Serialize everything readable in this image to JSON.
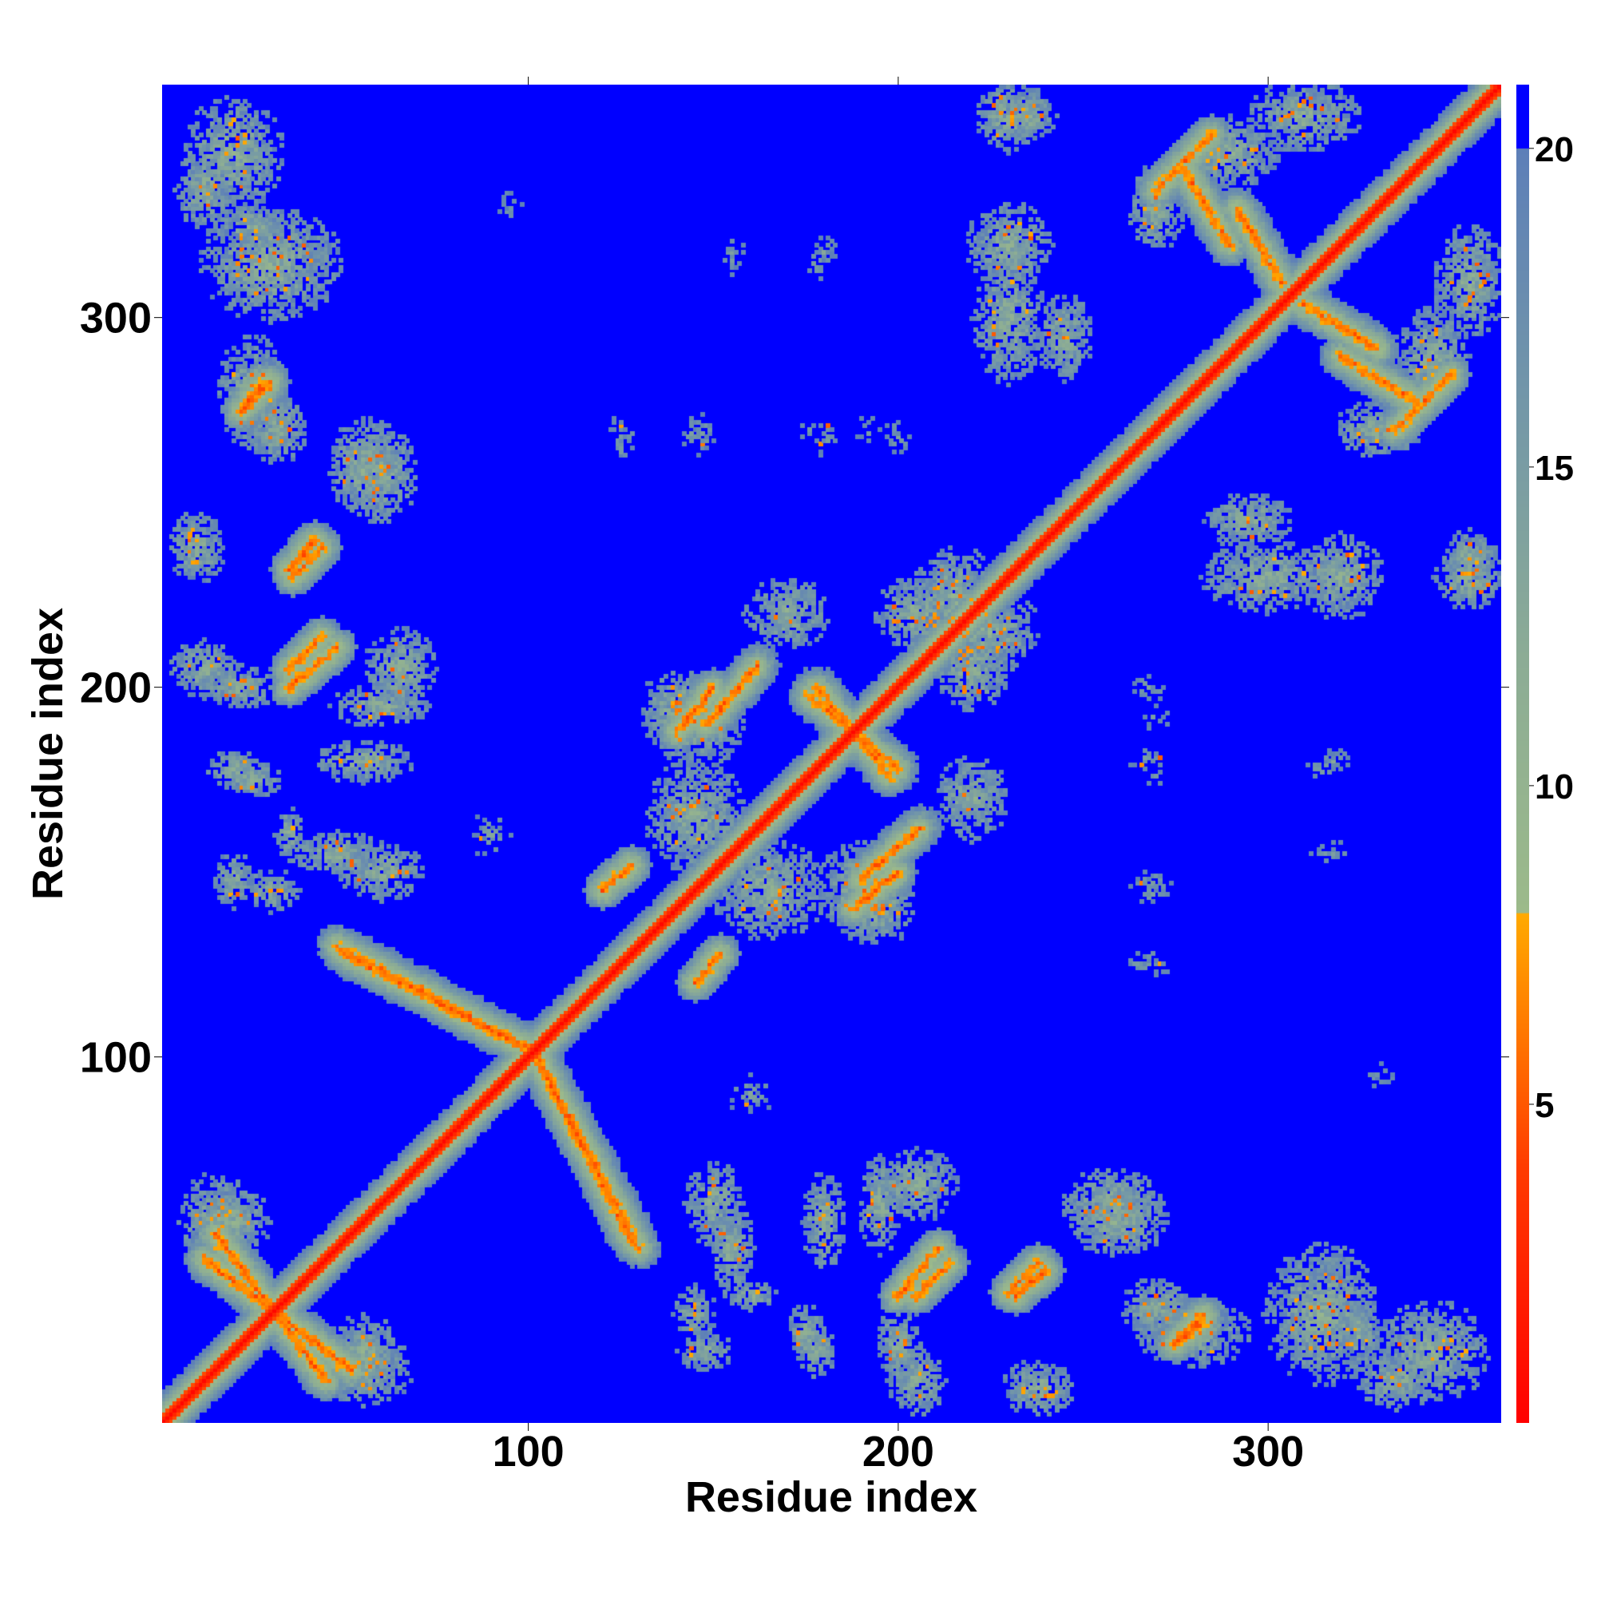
{
  "chart_data": {
    "type": "heatmap",
    "title": "",
    "xlabel": "Residue index",
    "ylabel": "Residue index",
    "xlim": [
      1,
      363
    ],
    "ylim": [
      1,
      363
    ],
    "x_ticks": [
      100,
      200,
      300
    ],
    "y_ticks": [
      100,
      200,
      300
    ],
    "x_tick_labels": [
      "100",
      "200",
      "300"
    ],
    "y_tick_labels": [
      "100",
      "200",
      "300"
    ],
    "colorbar": {
      "ticks": [
        5,
        10,
        15,
        20
      ],
      "tick_labels": [
        "5",
        "10",
        "15",
        "20"
      ],
      "range": [
        0,
        21
      ],
      "stops": [
        {
          "value": 0,
          "color": "#ff0000"
        },
        {
          "value": 4,
          "color": "#ff3b00"
        },
        {
          "value": 6,
          "color": "#ff7400"
        },
        {
          "value": 8,
          "color": "#ffaa00"
        },
        {
          "value": 8.01,
          "color": "#9cba8a"
        },
        {
          "value": 12,
          "color": "#8cac95"
        },
        {
          "value": 16,
          "color": "#7397a8"
        },
        {
          "value": 20,
          "color": "#5d7fb8"
        },
        {
          "value": 20.01,
          "color": "#0000ff"
        },
        {
          "value": 21,
          "color": "#0000ff"
        }
      ]
    },
    "features": {
      "diagonal": {
        "from": 1,
        "to": 363
      },
      "anti_diagonal_strands": [
        {
          "x1": 50,
          "y1": 128,
          "x2": 100,
          "y2": 102
        },
        {
          "x1": 103,
          "y1": 98,
          "x2": 130,
          "y2": 48
        },
        {
          "x1": 15,
          "y1": 52,
          "x2": 45,
          "y2": 12
        },
        {
          "x1": 178,
          "y1": 200,
          "x2": 198,
          "y2": 176
        },
        {
          "x1": 190,
          "y1": 148,
          "x2": 206,
          "y2": 162
        },
        {
          "x1": 320,
          "y1": 290,
          "x2": 340,
          "y2": 278
        },
        {
          "x1": 292,
          "y1": 330,
          "x2": 304,
          "y2": 310
        }
      ],
      "parallel_strands": [
        {
          "x1": 35,
          "y1": 200,
          "x2": 48,
          "y2": 211
        },
        {
          "x1": 35,
          "y1": 232,
          "x2": 42,
          "y2": 240
        },
        {
          "x1": 22,
          "y1": 275,
          "x2": 28,
          "y2": 283
        },
        {
          "x1": 205,
          "y1": 35,
          "x2": 214,
          "y2": 44
        },
        {
          "x1": 230,
          "y1": 36,
          "x2": 238,
          "y2": 44
        },
        {
          "x1": 140,
          "y1": 188,
          "x2": 150,
          "y2": 200
        },
        {
          "x1": 270,
          "y1": 335,
          "x2": 285,
          "y2": 350
        },
        {
          "x1": 275,
          "y1": 22,
          "x2": 283,
          "y2": 30
        },
        {
          "x1": 145,
          "y1": 120,
          "x2": 152,
          "y2": 128
        }
      ],
      "contact_patches": [
        {
          "x": 12,
          "y": 335,
          "rx": 8,
          "ry": 12
        },
        {
          "x": 25,
          "y": 325,
          "rx": 10,
          "ry": 6
        },
        {
          "x": 25,
          "y": 280,
          "rx": 10,
          "ry": 16
        },
        {
          "x": 10,
          "y": 238,
          "rx": 8,
          "ry": 10
        },
        {
          "x": 12,
          "y": 205,
          "rx": 10,
          "ry": 8
        },
        {
          "x": 60,
          "y": 258,
          "rx": 10,
          "ry": 14
        },
        {
          "x": 65,
          "y": 205,
          "rx": 10,
          "ry": 12
        },
        {
          "x": 20,
          "y": 178,
          "rx": 8,
          "ry": 5
        },
        {
          "x": 20,
          "y": 148,
          "rx": 6,
          "ry": 8
        },
        {
          "x": 35,
          "y": 160,
          "rx": 4,
          "ry": 8
        },
        {
          "x": 60,
          "y": 150,
          "rx": 12,
          "ry": 8
        },
        {
          "x": 15,
          "y": 55,
          "rx": 10,
          "ry": 14
        },
        {
          "x": 55,
          "y": 20,
          "rx": 10,
          "ry": 10
        },
        {
          "x": 145,
          "y": 30,
          "rx": 6,
          "ry": 8
        },
        {
          "x": 175,
          "y": 25,
          "rx": 5,
          "ry": 8
        },
        {
          "x": 200,
          "y": 22,
          "rx": 6,
          "ry": 10
        },
        {
          "x": 155,
          "y": 48,
          "rx": 6,
          "ry": 14
        },
        {
          "x": 180,
          "y": 55,
          "rx": 6,
          "ry": 14
        },
        {
          "x": 195,
          "y": 60,
          "rx": 6,
          "ry": 14
        },
        {
          "x": 260,
          "y": 55,
          "rx": 14,
          "ry": 10
        },
        {
          "x": 270,
          "y": 32,
          "rx": 10,
          "ry": 8
        },
        {
          "x": 315,
          "y": 30,
          "rx": 16,
          "ry": 20
        },
        {
          "x": 345,
          "y": 20,
          "rx": 16,
          "ry": 14
        },
        {
          "x": 140,
          "y": 195,
          "rx": 10,
          "ry": 10
        },
        {
          "x": 145,
          "y": 165,
          "rx": 14,
          "ry": 16
        },
        {
          "x": 190,
          "y": 145,
          "rx": 12,
          "ry": 14
        },
        {
          "x": 205,
          "y": 220,
          "rx": 12,
          "ry": 10
        },
        {
          "x": 225,
          "y": 215,
          "rx": 14,
          "ry": 12
        },
        {
          "x": 220,
          "y": 170,
          "rx": 10,
          "ry": 12
        },
        {
          "x": 290,
          "y": 345,
          "rx": 14,
          "ry": 10
        },
        {
          "x": 355,
          "y": 310,
          "rx": 10,
          "ry": 16
        },
        {
          "x": 330,
          "y": 270,
          "rx": 12,
          "ry": 8
        },
        {
          "x": 300,
          "y": 230,
          "rx": 18,
          "ry": 10
        },
        {
          "x": 355,
          "y": 230,
          "rx": 10,
          "ry": 10
        },
        {
          "x": 230,
          "y": 320,
          "rx": 12,
          "ry": 12
        },
        {
          "x": 245,
          "y": 295,
          "rx": 8,
          "ry": 12
        },
        {
          "x": 235,
          "y": 355,
          "rx": 8,
          "ry": 8
        }
      ],
      "sparse_specks": [
        {
          "x": 125,
          "y": 268,
          "rx": 5,
          "ry": 7
        },
        {
          "x": 145,
          "y": 268,
          "rx": 5,
          "ry": 8
        },
        {
          "x": 180,
          "y": 268,
          "rx": 4,
          "ry": 6
        },
        {
          "x": 200,
          "y": 268,
          "rx": 4,
          "ry": 6
        },
        {
          "x": 155,
          "y": 318,
          "rx": 4,
          "ry": 6
        },
        {
          "x": 180,
          "y": 318,
          "rx": 4,
          "ry": 6
        },
        {
          "x": 270,
          "y": 192,
          "rx": 5,
          "ry": 4
        },
        {
          "x": 270,
          "y": 175,
          "rx": 4,
          "ry": 3
        },
        {
          "x": 270,
          "y": 148,
          "rx": 6,
          "ry": 4
        },
        {
          "x": 265,
          "y": 125,
          "rx": 5,
          "ry": 3
        },
        {
          "x": 315,
          "y": 178,
          "rx": 6,
          "ry": 3
        },
        {
          "x": 315,
          "y": 155,
          "rx": 4,
          "ry": 3
        },
        {
          "x": 90,
          "y": 160,
          "rx": 6,
          "ry": 8
        },
        {
          "x": 95,
          "y": 330,
          "rx": 4,
          "ry": 6
        }
      ]
    }
  }
}
